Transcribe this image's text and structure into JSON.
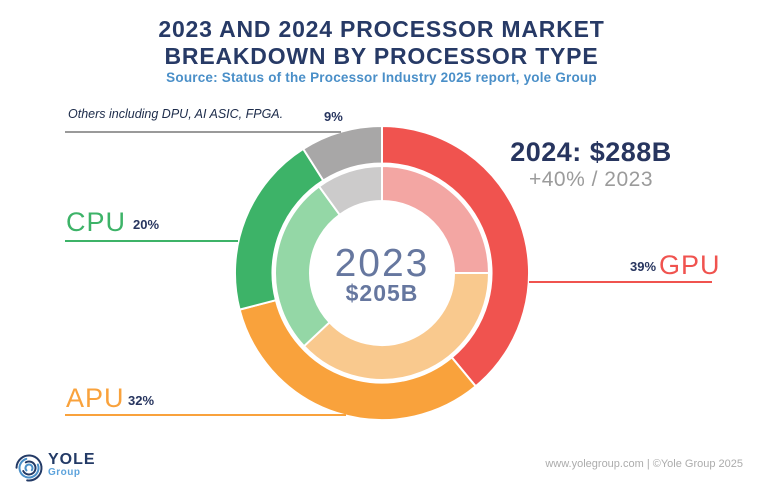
{
  "title": {
    "line1": "2023 AND 2024 PROCESSOR MARKET",
    "line2": "BREAKDOWN BY PROCESSOR TYPE",
    "source": "Source: Status of the Processor Industry 2025 report, yole Group"
  },
  "chart_data": {
    "type": "pie",
    "subtype": "double-ring-donut",
    "categories": [
      "GPU",
      "APU",
      "CPU",
      "Others"
    ],
    "series": [
      {
        "name": "2024",
        "ring": "outer",
        "total_billion_usd": 288,
        "values_pct": [
          39,
          32,
          20,
          9
        ]
      },
      {
        "name": "2023",
        "ring": "inner",
        "total_billion_usd": 205,
        "values_pct": [
          25,
          38,
          27,
          10
        ]
      }
    ],
    "percent_labels_shown_for": "2024",
    "outer_colors": [
      "#F0534F",
      "#F9A23C",
      "#3DB368",
      "#A8A7A7"
    ],
    "inner_colors": [
      "#F3A6A3",
      "#F9C98E",
      "#94D7A6",
      "#CCCBCB"
    ],
    "start_angle": "12-oclock",
    "direction": "clockwise",
    "notes": "Leader line labels point to outer (2024) ring"
  },
  "labels": {
    "others_note": "Others including DPU, AI ASIC, FPGA.",
    "others_pct": "9%",
    "cpu": "CPU",
    "cpu_pct": "20%",
    "apu": "APU",
    "apu_pct": "32%",
    "gpu": "GPU",
    "gpu_pct": "39%",
    "center_year": "2023",
    "center_total": "$205B",
    "right_total": "2024: $288B",
    "right_growth": "+40% / 2023"
  },
  "footer": {
    "logo_name": "YOLE",
    "logo_sub": "Group",
    "credit": "www.yolegroup.com | ©Yole Group 2025"
  }
}
